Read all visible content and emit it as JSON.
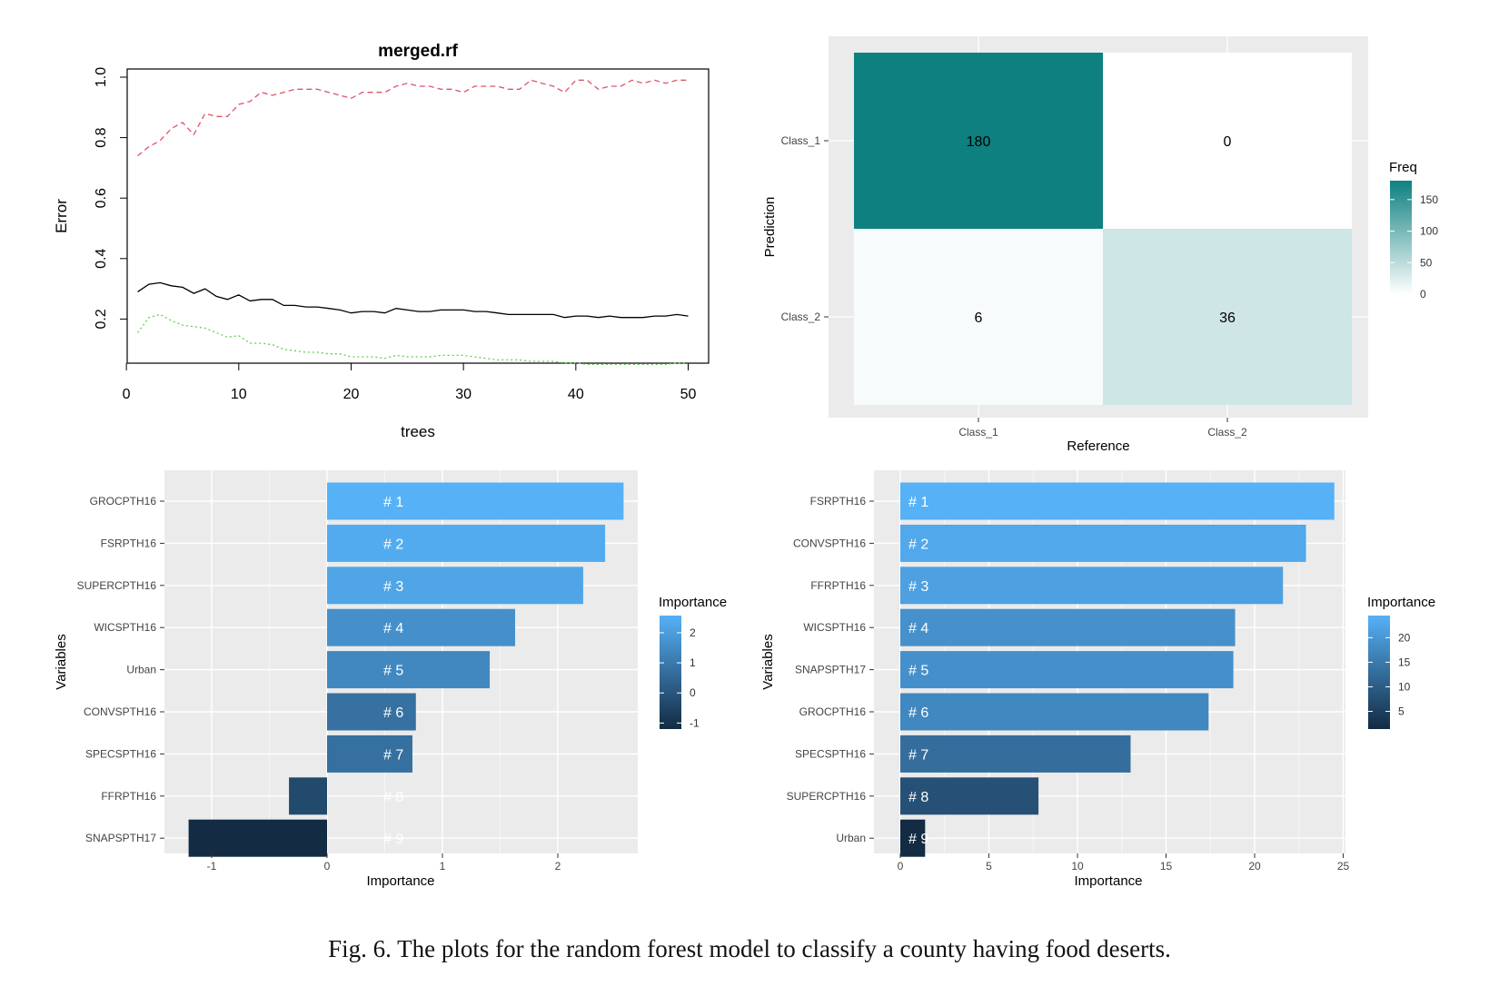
{
  "caption": "Fig. 6.  The plots for the random forest model to classify a county having food deserts.",
  "chart_data": [
    {
      "type": "line",
      "title": "merged.rf",
      "xlabel": "trees",
      "ylabel": "Error",
      "xlim": [
        0,
        50
      ],
      "ylim": [
        0,
        1
      ],
      "x_ticks": [
        "0",
        "10",
        "20",
        "30",
        "40",
        "50"
      ],
      "y_ticks": [
        "0.2",
        "0.4",
        "0.6",
        "0.8",
        "1.0"
      ],
      "grid": false,
      "x": [
        1,
        2,
        3,
        4,
        5,
        6,
        7,
        8,
        9,
        10,
        11,
        12,
        13,
        14,
        15,
        16,
        17,
        18,
        19,
        20,
        21,
        22,
        23,
        24,
        25,
        26,
        27,
        28,
        29,
        30,
        31,
        32,
        33,
        34,
        35,
        36,
        37,
        38,
        39,
        40,
        41,
        42,
        43,
        44,
        45,
        46,
        47,
        48,
        49,
        50
      ],
      "series": [
        {
          "style": "dashed",
          "color": "#df536b",
          "values": [
            0.74,
            0.77,
            0.79,
            0.83,
            0.85,
            0.81,
            0.88,
            0.87,
            0.87,
            0.91,
            0.92,
            0.95,
            0.94,
            0.95,
            0.96,
            0.96,
            0.96,
            0.95,
            0.94,
            0.93,
            0.95,
            0.95,
            0.95,
            0.97,
            0.98,
            0.97,
            0.97,
            0.96,
            0.96,
            0.95,
            0.97,
            0.97,
            0.97,
            0.96,
            0.96,
            0.99,
            0.98,
            0.97,
            0.95,
            0.99,
            0.99,
            0.96,
            0.97,
            0.97,
            0.99,
            0.98,
            0.99,
            0.98,
            0.99,
            0.99
          ]
        },
        {
          "style": "solid",
          "color": "#000000",
          "values": [
            0.29,
            0.315,
            0.32,
            0.31,
            0.305,
            0.285,
            0.3,
            0.275,
            0.265,
            0.28,
            0.26,
            0.265,
            0.265,
            0.245,
            0.245,
            0.24,
            0.24,
            0.235,
            0.23,
            0.22,
            0.225,
            0.225,
            0.22,
            0.235,
            0.23,
            0.225,
            0.225,
            0.23,
            0.23,
            0.23,
            0.225,
            0.225,
            0.22,
            0.215,
            0.215,
            0.215,
            0.215,
            0.215,
            0.205,
            0.21,
            0.21,
            0.205,
            0.21,
            0.205,
            0.205,
            0.205,
            0.21,
            0.21,
            0.215,
            0.21
          ]
        },
        {
          "style": "dotted",
          "color": "#61d04f",
          "values": [
            0.155,
            0.205,
            0.215,
            0.195,
            0.18,
            0.175,
            0.17,
            0.155,
            0.14,
            0.145,
            0.12,
            0.12,
            0.115,
            0.1,
            0.095,
            0.09,
            0.09,
            0.085,
            0.085,
            0.075,
            0.075,
            0.075,
            0.07,
            0.08,
            0.075,
            0.075,
            0.075,
            0.08,
            0.08,
            0.08,
            0.075,
            0.07,
            0.065,
            0.065,
            0.065,
            0.06,
            0.06,
            0.06,
            0.055,
            0.055,
            0.05,
            0.05,
            0.05,
            0.05,
            0.05,
            0.05,
            0.05,
            0.05,
            0.055,
            0.055
          ]
        }
      ]
    },
    {
      "type": "heatmap",
      "xlabel": "Reference",
      "ylabel": "Prediction",
      "x_categories": [
        "Class_1",
        "Class_2"
      ],
      "y_categories": [
        "Class_1",
        "Class_2"
      ],
      "cells": [
        {
          "reference": "Class_1",
          "prediction": "Class_1",
          "freq": 180
        },
        {
          "reference": "Class_2",
          "prediction": "Class_1",
          "freq": 0
        },
        {
          "reference": "Class_1",
          "prediction": "Class_2",
          "freq": 6
        },
        {
          "reference": "Class_2",
          "prediction": "Class_2",
          "freq": 36
        }
      ],
      "legend": {
        "title": "Freq",
        "ticks": [
          0,
          50,
          100,
          150
        ],
        "range": [
          0,
          180
        ],
        "low_color": "#ffffff",
        "high_color": "#0e8080",
        "placement": "right"
      }
    },
    {
      "type": "bar",
      "orientation": "horizontal",
      "xlabel": "Importance",
      "ylabel": "Variables",
      "xlim": [
        -1.25,
        2.7
      ],
      "x_ticks": [
        -1,
        0,
        1,
        2
      ],
      "categories": [
        "GROCPTH16",
        "FSRPTH16",
        "SUPERCPTH16",
        "WICSPTH16",
        "Urban",
        "CONVSPTH16",
        "SPECSPTH16",
        "FFRPTH16",
        "SNAPSPTH17"
      ],
      "values": [
        2.57,
        2.41,
        2.22,
        1.63,
        1.41,
        0.77,
        0.74,
        -0.33,
        -1.2
      ],
      "rank_labels": [
        "# 1",
        "# 2",
        "# 3",
        "# 4",
        "# 5",
        "# 6",
        "# 7",
        "# 8",
        "# 9"
      ],
      "legend": {
        "title": "Importance",
        "ticks": [
          -1,
          0,
          1,
          2
        ],
        "range": [
          -1.2,
          2.57
        ],
        "placement": "right"
      }
    },
    {
      "type": "bar",
      "orientation": "horizontal",
      "xlabel": "Importance",
      "ylabel": "Variables",
      "xlim": [
        0,
        25.6
      ],
      "x_ticks": [
        0,
        5,
        10,
        15,
        20,
        25
      ],
      "categories": [
        "FSRPTH16",
        "CONVSPTH16",
        "FFRPTH16",
        "WICSPTH16",
        "SNAPSPTH17",
        "GROCPTH16",
        "SPECSPTH16",
        "SUPERCPTH16",
        "Urban"
      ],
      "values": [
        24.5,
        22.9,
        21.6,
        18.9,
        18.8,
        17.4,
        13.0,
        7.8,
        1.4
      ],
      "rank_labels": [
        "# 1",
        "# 2",
        "# 3",
        "# 4",
        "# 5",
        "# 6",
        "# 7",
        "# 8",
        "# 9"
      ],
      "legend": {
        "title": "Importance",
        "ticks": [
          5,
          10,
          15,
          20
        ],
        "range": [
          1.4,
          24.5
        ],
        "placement": "right"
      }
    }
  ]
}
